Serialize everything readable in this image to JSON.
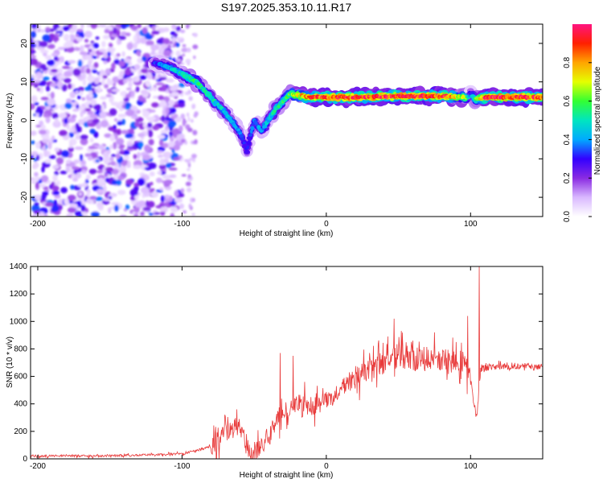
{
  "title": "S197.2025.353.10.11.R17",
  "chart_data": [
    {
      "type": "heatmap",
      "xlabel": "Height of straight line (km)",
      "ylabel": "Frequency (Hz)",
      "xlim": [
        -205,
        150
      ],
      "ylim": [
        -25,
        25
      ],
      "xticks": [
        -200,
        -100,
        0,
        100
      ],
      "yticks": [
        -20,
        -10,
        0,
        10,
        20
      ],
      "colorbar": {
        "label": "Normalized spectral amplitude",
        "range": [
          0,
          1
        ],
        "ticks": [
          "0.0",
          "0.2",
          "0.4",
          "0.6",
          "0.8"
        ],
        "colors": [
          "#ffffff",
          "#d9b8ff",
          "#8a2be2",
          "#3300ff",
          "#00aaff",
          "#00e5c0",
          "#33ff33",
          "#e5ff00",
          "#ffa500",
          "#ff2000",
          "#ff1480"
        ]
      },
      "ridge": {
        "x": [
          -120,
          -110,
          -100,
          -90,
          -80,
          -70,
          -60,
          -55,
          -50,
          -45,
          -40,
          -35,
          -30,
          -25,
          -20,
          -10,
          0,
          20,
          40,
          60,
          80,
          98,
          100,
          103,
          110,
          130,
          150
        ],
        "freq": [
          15,
          14,
          12,
          10,
          6,
          2,
          -3,
          -8,
          0,
          -3,
          0,
          3,
          5,
          7,
          6.5,
          6,
          6,
          6,
          6.2,
          6.3,
          6.3,
          6,
          7,
          5.5,
          6,
          6,
          6
        ],
        "amplitude": [
          0.3,
          0.4,
          0.5,
          0.55,
          0.5,
          0.45,
          0.35,
          0.3,
          0.35,
          0.4,
          0.45,
          0.5,
          0.55,
          0.6,
          0.7,
          0.85,
          0.9,
          0.9,
          0.9,
          0.9,
          0.9,
          0.6,
          0.3,
          0.6,
          0.9,
          0.9,
          0.9
        ]
      }
    },
    {
      "type": "line",
      "xlabel": "Height of straight line (km)",
      "ylabel": "SNR (10 * v/v)",
      "xlim": [
        -205,
        150
      ],
      "ylim": [
        0,
        1400
      ],
      "xticks": [
        -200,
        -100,
        0,
        100
      ],
      "yticks": [
        0,
        200,
        400,
        600,
        800,
        1000,
        1200,
        1400
      ],
      "color": "#e83a3a",
      "series": [
        {
          "name": "SNR",
          "x": [
            -205,
            -180,
            -160,
            -140,
            -120,
            -110,
            -100,
            -90,
            -80,
            -75,
            -70,
            -65,
            -60,
            -58,
            -55,
            -50,
            -45,
            -40,
            -35,
            -30,
            -25,
            -20,
            -15,
            -10,
            -5,
            0,
            5,
            10,
            15,
            20,
            25,
            30,
            35,
            40,
            45,
            50,
            55,
            60,
            65,
            70,
            75,
            80,
            85,
            90,
            95,
            98,
            100,
            101,
            102,
            103,
            104,
            105,
            106,
            107,
            108,
            110,
            115,
            120,
            125,
            130,
            135,
            140,
            145,
            150
          ],
          "y": [
            20,
            25,
            20,
            25,
            30,
            30,
            40,
            60,
            90,
            140,
            180,
            220,
            240,
            170,
            90,
            40,
            80,
            180,
            270,
            330,
            360,
            420,
            390,
            380,
            400,
            440,
            460,
            500,
            560,
            600,
            630,
            640,
            660,
            700,
            720,
            740,
            740,
            730,
            720,
            730,
            730,
            730,
            700,
            720,
            700,
            650,
            560,
            520,
            420,
            350,
            320,
            380,
            550,
            640,
            650,
            660,
            670,
            660,
            670,
            680,
            670,
            680,
            665,
            670
          ],
          "spikes": [
            {
              "x": -62,
              "y": 360
            },
            {
              "x": -32,
              "y": 770
            },
            {
              "x": -23,
              "y": 750
            },
            {
              "x": -15,
              "y": 560
            },
            {
              "x": 30,
              "y": 770
            },
            {
              "x": 47,
              "y": 1020
            },
            {
              "x": 60,
              "y": 860
            },
            {
              "x": 75,
              "y": 920
            },
            {
              "x": 90,
              "y": 850
            },
            {
              "x": 98,
              "y": 1040
            },
            {
              "x": 106,
              "y": 1400
            }
          ]
        }
      ]
    }
  ]
}
